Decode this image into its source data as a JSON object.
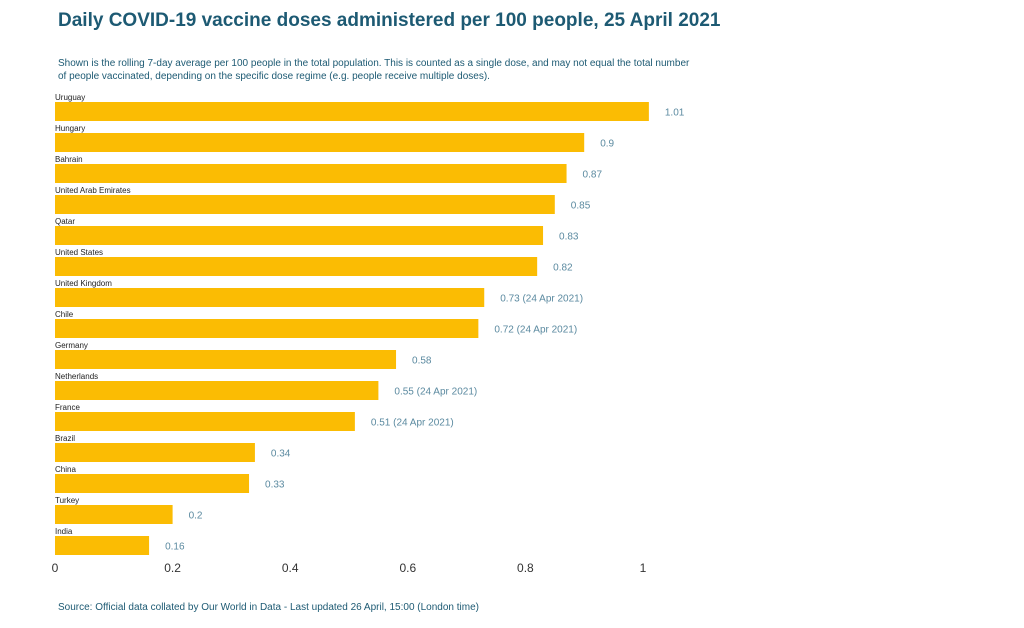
{
  "header": {
    "title": "Daily COVID-19 vaccine doses administered per 100 people, 25 April 2021",
    "subtitle": "Shown is the rolling 7-day average per 100 people in the total population. This is counted as a single dose, and may not equal the total number of people vaccinated, depending on the specific dose regime (e.g. people receive multiple doses)."
  },
  "footer": {
    "source": "Source: Official data collated by Our World in Data - Last updated 26 April, 15:00 (London time)"
  },
  "colors": {
    "bar": "#fbbc03",
    "title": "#1d5a73",
    "value_label": "#5b8aa0"
  },
  "chart_data": {
    "type": "bar",
    "orientation": "horizontal",
    "title": "Daily COVID-19 vaccine doses administered per 100 people, 25 April 2021",
    "xlabel": "",
    "ylabel": "",
    "xlim": [
      0,
      1.0
    ],
    "xticks": [
      "0",
      "0.2",
      "0.4",
      "0.6",
      "0.8",
      "1"
    ],
    "grid": false,
    "categories": [
      "Uruguay",
      "Hungary",
      "Bahrain",
      "United Arab Emirates",
      "Qatar",
      "United States",
      "United Kingdom",
      "Chile",
      "Germany",
      "Netherlands",
      "France",
      "Brazil",
      "China",
      "Turkey",
      "India"
    ],
    "values": [
      1.01,
      0.9,
      0.87,
      0.85,
      0.83,
      0.82,
      0.73,
      0.72,
      0.58,
      0.55,
      0.51,
      0.34,
      0.33,
      0.2,
      0.16
    ],
    "value_labels": [
      "1.01",
      "0.9",
      "0.87",
      "0.85",
      "0.83",
      "0.82",
      "0.73 (24 Apr 2021)",
      "0.72 (24 Apr 2021)",
      "0.58",
      "0.55 (24 Apr 2021)",
      "0.51 (24 Apr 2021)",
      "0.34",
      "0.33",
      "0.2",
      "0.16"
    ]
  }
}
